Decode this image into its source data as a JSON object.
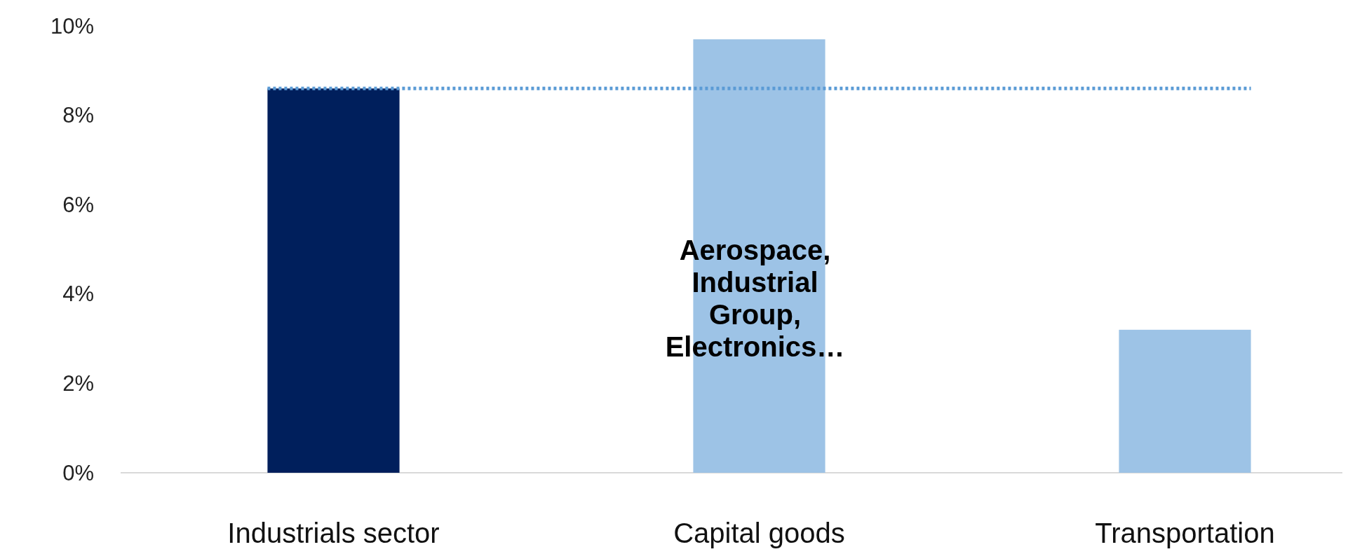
{
  "chart_data": {
    "type": "bar",
    "categories": [
      "Industrials sector",
      "Capital goods",
      "Transportation"
    ],
    "values": [
      8.6,
      9.7,
      3.2
    ],
    "colors": [
      "#001f5c",
      "#9dc3e6",
      "#9dc3e6"
    ],
    "ylim": [
      0,
      10
    ],
    "yticks": [
      {
        "value": 0,
        "label": "0%"
      },
      {
        "value": 2,
        "label": "2%"
      },
      {
        "value": 4,
        "label": "4%"
      },
      {
        "value": 6,
        "label": "6%"
      },
      {
        "value": 8,
        "label": "8%"
      },
      {
        "value": 10,
        "label": "10%"
      }
    ],
    "ref_lines": [
      {
        "axis": "y",
        "value": 8.6,
        "color": "#5b9bd5",
        "line_style": "dotted"
      }
    ],
    "annotations": [
      "Aerospace, Industrial Group, Electronics…"
    ]
  }
}
